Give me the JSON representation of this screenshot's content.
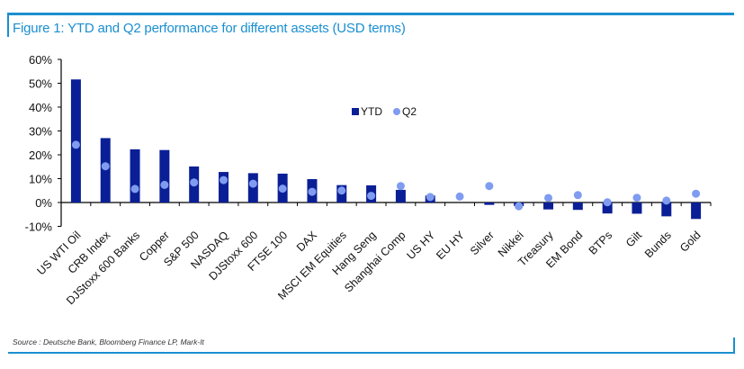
{
  "title": "Figure 1: YTD and Q2 performance for different assets (USD terms)",
  "source": "Source : Deutsche Bank, Bloomberg Finance LP, Mark-It",
  "chart_data": {
    "type": "bar",
    "title": "Figure 1: YTD and Q2 performance for different assets (USD terms)",
    "categories": [
      "US WTI Oil",
      "CRB Index",
      "DJStoxx 600 Banks",
      "Copper",
      "S&P 500",
      "NASDAQ",
      "DJStoxx 600",
      "FTSE 100",
      "DAX",
      "MSCI EM Equities",
      "Hang Seng",
      "Shanghai Comp",
      "US HY",
      "EU HY",
      "Silver",
      "Nikkei",
      "Treasury",
      "EM Bond",
      "BTPs",
      "Gilt",
      "Bunds",
      "Gold"
    ],
    "series": [
      {
        "name": "YTD",
        "kind": "bar",
        "color": "#0a1f96",
        "values": [
          51.6,
          27.0,
          22.3,
          22.0,
          15.1,
          12.8,
          12.3,
          12.1,
          9.8,
          7.3,
          7.2,
          5.3,
          2.9,
          0.0,
          -1.0,
          -1.5,
          -2.9,
          -3.1,
          -4.6,
          -4.7,
          -5.8,
          -6.9
        ]
      },
      {
        "name": "Q2",
        "kind": "dot",
        "color": "#7f9cf0",
        "values": [
          24.2,
          15.2,
          5.7,
          7.4,
          8.4,
          9.4,
          7.9,
          5.8,
          4.5,
          5.0,
          2.8,
          6.9,
          2.3,
          2.5,
          6.9,
          -1.6,
          1.9,
          3.1,
          0.1,
          2.0,
          0.8,
          3.7
        ]
      }
    ],
    "ylim": [
      -10,
      60
    ],
    "yticks": [
      "-10%",
      "0%",
      "10%",
      "20%",
      "30%",
      "40%",
      "50%",
      "60%"
    ],
    "ytick_values": [
      -10,
      0,
      10,
      20,
      30,
      40,
      50,
      60
    ],
    "grid": false,
    "legend": "center"
  }
}
